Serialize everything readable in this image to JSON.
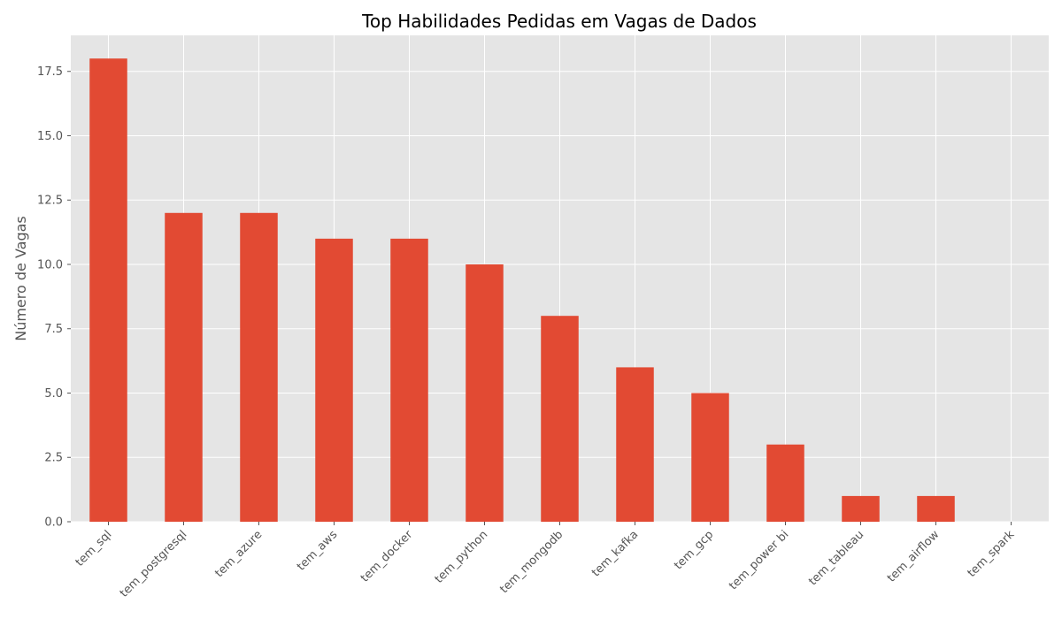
{
  "chart_data": {
    "type": "bar",
    "title": "Top Habilidades Pedidas em Vagas de Dados",
    "xlabel": "",
    "ylabel": "Número de Vagas",
    "categories": [
      "tem_sql",
      "tem_postgresql",
      "tem_azure",
      "tem_aws",
      "tem_docker",
      "tem_python",
      "tem_mongodb",
      "tem_kafka",
      "tem_gcp",
      "tem_power bi",
      "tem_tableau",
      "tem_airflow",
      "tem_spark"
    ],
    "values": [
      18,
      12,
      12,
      11,
      11,
      10,
      8,
      6,
      5,
      3,
      1,
      1,
      0
    ],
    "ylim": [
      0,
      18.9
    ],
    "yticks": [
      "0.0",
      "2.5",
      "5.0",
      "7.5",
      "10.0",
      "12.5",
      "15.0",
      "17.5"
    ],
    "grid": true,
    "legend": "none",
    "colors": {
      "bar": "#E24A33",
      "plot_background": "#E5E5E5",
      "grid": "#FFFFFF"
    }
  }
}
